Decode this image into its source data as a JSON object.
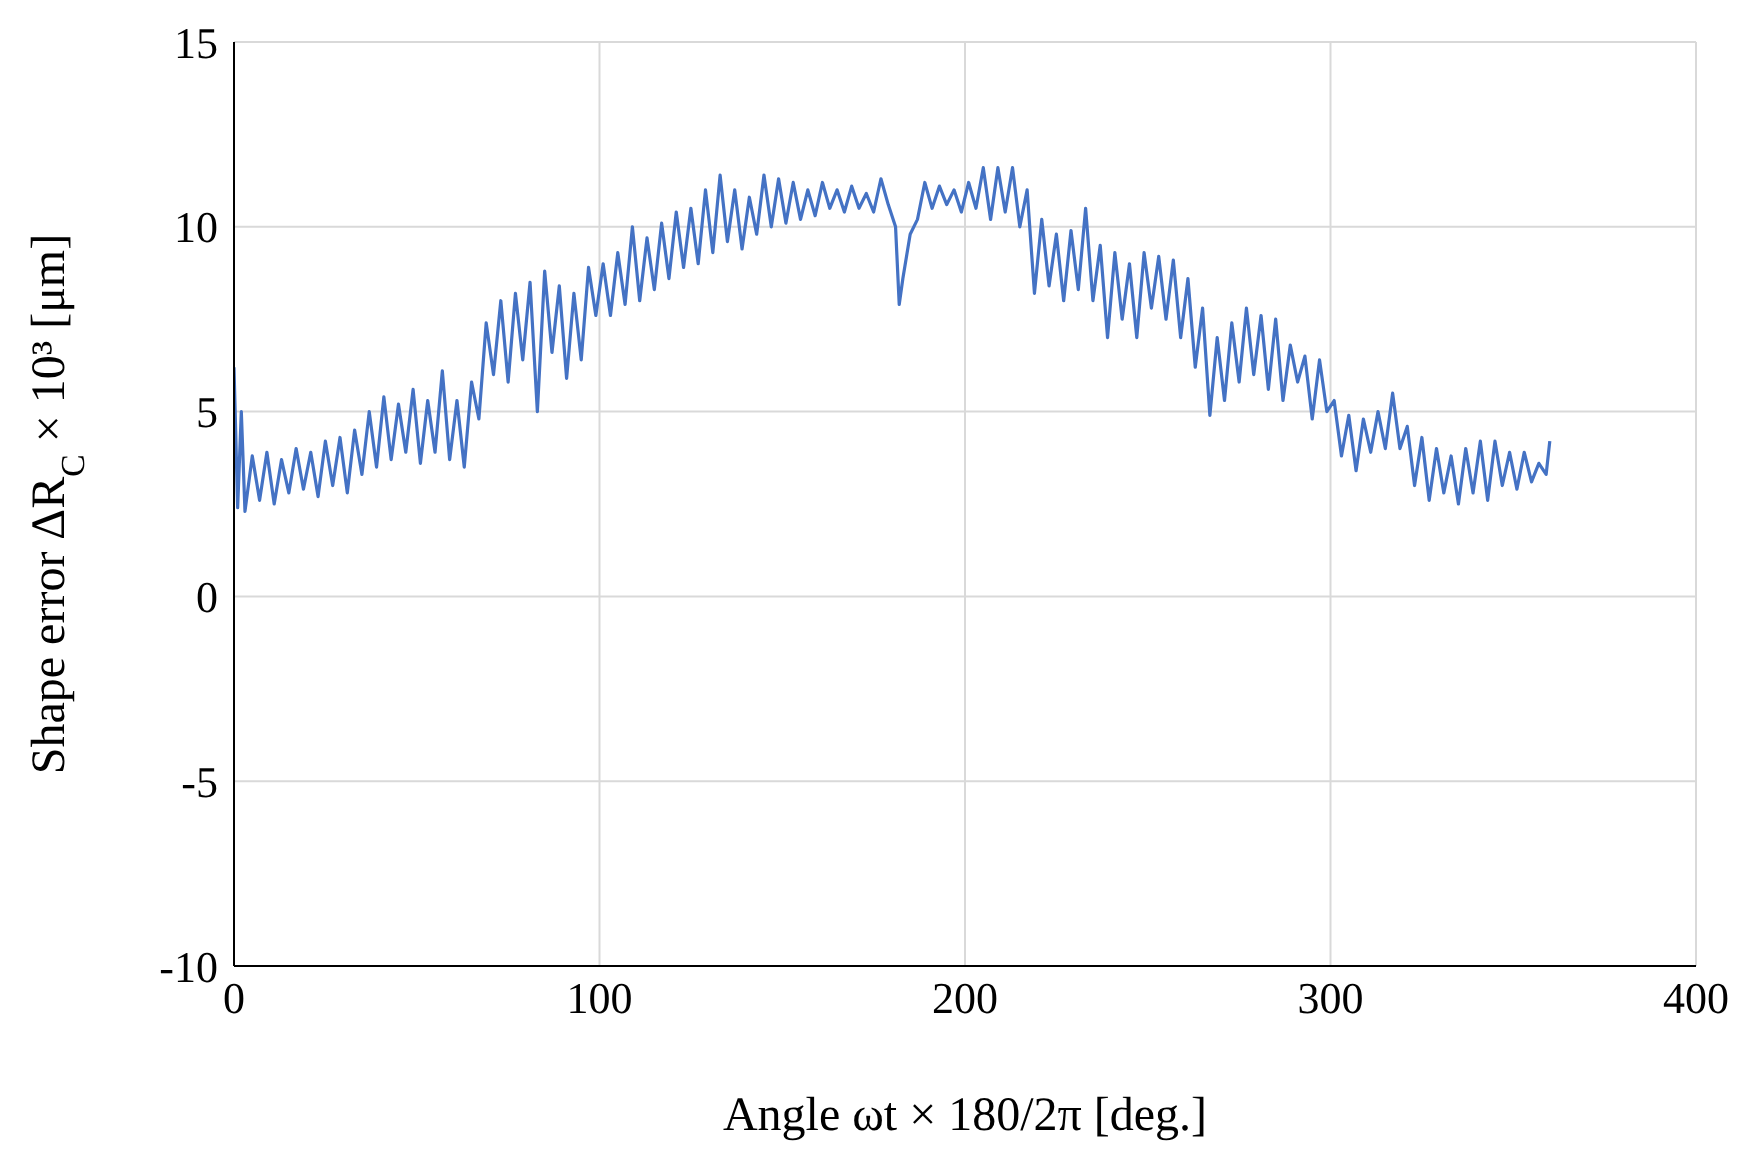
{
  "chart_data": {
    "type": "line",
    "xlabel": "Angle ωt × 180/2π [deg.]",
    "ylabel": "Shape error ΔR$_{C}$ × 10³ [μm]",
    "x": [
      0,
      1,
      2,
      3,
      5,
      7,
      9,
      11,
      13,
      15,
      17,
      19,
      21,
      23,
      25,
      27,
      29,
      31,
      33,
      35,
      37,
      39,
      41,
      43,
      45,
      47,
      49,
      51,
      53,
      55,
      57,
      59,
      61,
      63,
      65,
      67,
      69,
      71,
      73,
      75,
      77,
      79,
      81,
      83,
      85,
      87,
      89,
      91,
      93,
      95,
      97,
      99,
      101,
      103,
      105,
      107,
      109,
      111,
      113,
      115,
      117,
      119,
      121,
      123,
      125,
      127,
      129,
      131,
      133,
      135,
      137,
      139,
      141,
      143,
      145,
      147,
      149,
      151,
      153,
      155,
      157,
      159,
      161,
      163,
      165,
      167,
      169,
      171,
      173,
      175,
      177,
      179,
      181,
      182,
      183,
      185,
      187,
      189,
      191,
      193,
      195,
      197,
      199,
      201,
      203,
      205,
      207,
      209,
      211,
      213,
      215,
      217,
      219,
      221,
      223,
      225,
      227,
      229,
      231,
      233,
      235,
      237,
      239,
      241,
      243,
      245,
      247,
      249,
      251,
      253,
      255,
      257,
      259,
      261,
      263,
      265,
      267,
      269,
      271,
      273,
      275,
      277,
      279,
      281,
      283,
      285,
      287,
      289,
      291,
      293,
      295,
      297,
      299,
      301,
      303,
      305,
      307,
      309,
      311,
      313,
      315,
      317,
      319,
      321,
      323,
      325,
      327,
      329,
      331,
      333,
      335,
      337,
      339,
      341,
      343,
      345,
      347,
      349,
      351,
      353,
      355,
      357,
      359,
      360
    ],
    "series": [
      {
        "color": "#4472c4",
        "values": [
          6.2,
          2.4,
          5.0,
          2.3,
          3.8,
          2.6,
          3.9,
          2.5,
          3.7,
          2.8,
          4.0,
          2.9,
          3.9,
          2.7,
          4.2,
          3.0,
          4.3,
          2.8,
          4.5,
          3.3,
          5.0,
          3.5,
          5.4,
          3.7,
          5.2,
          3.9,
          5.6,
          3.6,
          5.3,
          3.9,
          6.1,
          3.7,
          5.3,
          3.5,
          5.8,
          4.8,
          7.4,
          6.0,
          8.0,
          5.8,
          8.2,
          6.4,
          8.5,
          5.0,
          8.8,
          6.6,
          8.4,
          5.9,
          8.2,
          6.4,
          8.9,
          7.6,
          9.0,
          7.6,
          9.3,
          7.9,
          10.0,
          8.0,
          9.7,
          8.3,
          10.1,
          8.6,
          10.4,
          8.9,
          10.5,
          9.0,
          11.0,
          9.3,
          11.4,
          9.6,
          11.0,
          9.4,
          10.8,
          9.8,
          11.4,
          10.0,
          11.3,
          10.1,
          11.2,
          10.2,
          11.0,
          10.3,
          11.2,
          10.5,
          11.0,
          10.4,
          11.1,
          10.5,
          10.9,
          10.4,
          11.3,
          10.6,
          10.0,
          7.9,
          8.6,
          9.8,
          10.2,
          11.2,
          10.5,
          11.1,
          10.6,
          11.0,
          10.4,
          11.2,
          10.5,
          11.6,
          10.2,
          11.6,
          10.4,
          11.6,
          10.0,
          11.0,
          8.2,
          10.2,
          8.4,
          9.8,
          8.0,
          9.9,
          8.3,
          10.5,
          8.0,
          9.5,
          7.0,
          9.3,
          7.5,
          9.0,
          7.0,
          9.3,
          7.8,
          9.2,
          7.5,
          9.1,
          7.0,
          8.6,
          6.2,
          7.8,
          4.9,
          7.0,
          5.3,
          7.4,
          5.8,
          7.8,
          6.0,
          7.6,
          5.6,
          7.5,
          5.3,
          6.8,
          5.8,
          6.5,
          4.8,
          6.4,
          5.0,
          5.3,
          3.8,
          4.9,
          3.4,
          4.8,
          3.9,
          5.0,
          4.0,
          5.5,
          4.0,
          4.6,
          3.0,
          4.3,
          2.6,
          4.0,
          2.8,
          3.8,
          2.5,
          4.0,
          2.8,
          4.2,
          2.6,
          4.2,
          3.0,
          3.9,
          2.9,
          3.9,
          3.1,
          3.6,
          3.3,
          4.2
        ]
      }
    ],
    "xlim": [
      0,
      400
    ],
    "xticks": [
      0,
      100,
      200,
      300,
      400
    ],
    "ylim": [
      -10,
      15
    ],
    "yticks": [
      -10,
      -5,
      0,
      5,
      10,
      15
    ],
    "grid": true,
    "marker": "none",
    "line_style": "solid"
  }
}
